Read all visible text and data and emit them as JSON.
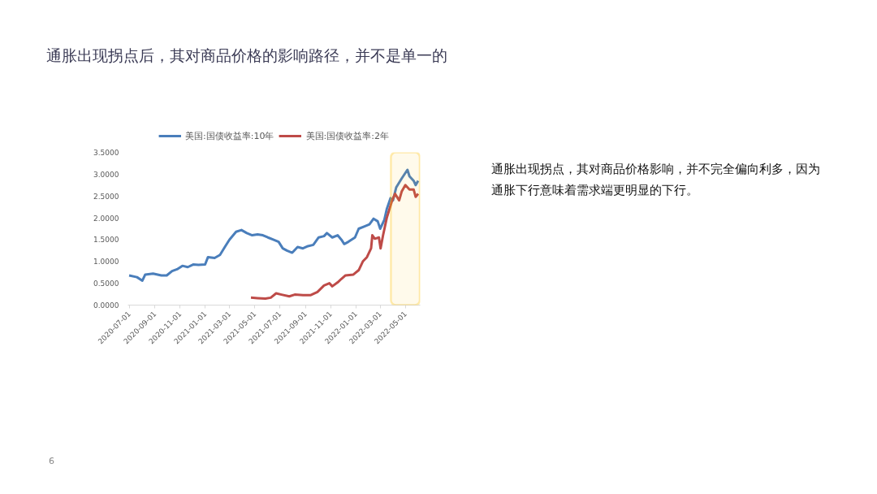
{
  "chart_data": {
    "type": "line",
    "title": "通胀出现拐点后，其对商品价格的影响路径，并不是单一的",
    "annotations": [
      "通胀出现拐点，其对商品价格影响，并不完全偏向利多，因为通胀下行意味着需求端更明显的下行。",
      "6"
    ],
    "legend": "top",
    "grid": false,
    "line_style": "solid",
    "marker": "none",
    "xlim": [
      "2020-06-28",
      "2022-06-06"
    ],
    "xticks": [
      "2020-07-01",
      "2020-09-01",
      "2020-11-01",
      "2021-01-01",
      "2021-03-01",
      "2021-05-01",
      "2021-07-01",
      "2021-09-01",
      "2021-11-01",
      "2022-01-01",
      "2022-03-01",
      "2022-05-01"
    ],
    "ylim": [
      0,
      3.5
    ],
    "yticks": [
      {
        "value": 0,
        "label": "0.0000"
      },
      {
        "value": 0.5,
        "label": "0.5000"
      },
      {
        "value": 1,
        "label": "1.0000"
      },
      {
        "value": 1.5,
        "label": "1.5000"
      },
      {
        "value": 2,
        "label": "2.0000"
      },
      {
        "value": 2.5,
        "label": "2.5000"
      },
      {
        "value": 3,
        "label": "3.0000"
      },
      {
        "value": 3.5,
        "label": "3.5000"
      }
    ],
    "bands": [
      {
        "axis": "x",
        "from": "2022-03-27",
        "to": "2022-06-05",
        "color": "#ffc000"
      }
    ],
    "series": [
      {
        "name": "美国:国债收益率:10年",
        "color": "#4a7ebb",
        "x": [
          "2020-07-01",
          "2020-07-20",
          "2020-08-02",
          "2020-08-09",
          "2020-08-28",
          "2020-09-17",
          "2020-09-30",
          "2020-10-13",
          "2020-10-25",
          "2020-11-07",
          "2020-11-20",
          "2020-12-03",
          "2020-12-16",
          "2021-01-01",
          "2021-01-08",
          "2021-01-24",
          "2021-02-06",
          "2021-02-19",
          "2021-03-01",
          "2021-03-17",
          "2021-03-30",
          "2021-04-12",
          "2021-04-25",
          "2021-05-08",
          "2021-05-21",
          "2021-06-02",
          "2021-06-15",
          "2021-06-28",
          "2021-07-08",
          "2021-07-18",
          "2021-07-31",
          "2021-08-13",
          "2021-08-26",
          "2021-09-07",
          "2021-09-20",
          "2021-10-03",
          "2021-10-16",
          "2021-10-23",
          "2021-11-05",
          "2021-11-18",
          "2021-11-27",
          "2021-12-04",
          "2021-12-14",
          "2021-12-30",
          "2022-01-08",
          "2022-01-21",
          "2022-02-03",
          "2022-02-13",
          "2022-02-23",
          "2022-03-01",
          "2022-03-11",
          "2022-03-17",
          "2022-03-26",
          "2022-04-01",
          "2022-04-09",
          "2022-04-22",
          "2022-05-06",
          "2022-05-11",
          "2022-05-21",
          "2022-05-26",
          "2022-06-01"
        ],
        "values": [
          0.68,
          0.64,
          0.56,
          0.7,
          0.72,
          0.68,
          0.68,
          0.78,
          0.82,
          0.9,
          0.87,
          0.93,
          0.92,
          0.93,
          1.1,
          1.08,
          1.15,
          1.35,
          1.5,
          1.68,
          1.72,
          1.65,
          1.6,
          1.62,
          1.6,
          1.55,
          1.5,
          1.45,
          1.3,
          1.25,
          1.2,
          1.33,
          1.3,
          1.35,
          1.38,
          1.55,
          1.58,
          1.65,
          1.55,
          1.6,
          1.5,
          1.4,
          1.45,
          1.55,
          1.75,
          1.8,
          1.85,
          1.98,
          1.92,
          1.75,
          1.95,
          2.2,
          2.45,
          2.4,
          2.7,
          2.9,
          3.1,
          2.95,
          2.85,
          2.75,
          2.85
        ]
      },
      {
        "name": "美国:国债收益率:2年",
        "color": "#be4b48",
        "x": [
          "2021-04-22",
          "2021-05-08",
          "2021-05-27",
          "2021-06-09",
          "2021-06-22",
          "2021-07-05",
          "2021-07-24",
          "2021-08-06",
          "2021-08-26",
          "2021-09-14",
          "2021-09-30",
          "2021-10-16",
          "2021-10-29",
          "2021-11-05",
          "2021-11-18",
          "2021-11-27",
          "2021-12-07",
          "2021-12-26",
          "2022-01-08",
          "2022-01-18",
          "2022-01-28",
          "2022-02-07",
          "2022-02-10",
          "2022-02-16",
          "2022-02-26",
          "2022-03-02",
          "2022-03-08",
          "2022-03-17",
          "2022-03-30",
          "2022-04-06",
          "2022-04-16",
          "2022-04-22",
          "2022-05-01",
          "2022-05-11",
          "2022-05-21",
          "2022-05-26",
          "2022-06-01"
        ],
        "values": [
          0.17,
          0.16,
          0.15,
          0.17,
          0.27,
          0.24,
          0.2,
          0.24,
          0.23,
          0.23,
          0.3,
          0.45,
          0.5,
          0.43,
          0.52,
          0.6,
          0.68,
          0.7,
          0.8,
          1.0,
          1.1,
          1.3,
          1.6,
          1.52,
          1.55,
          1.3,
          1.6,
          2.0,
          2.4,
          2.55,
          2.4,
          2.6,
          2.75,
          2.65,
          2.65,
          2.48,
          2.55
        ]
      }
    ]
  }
}
